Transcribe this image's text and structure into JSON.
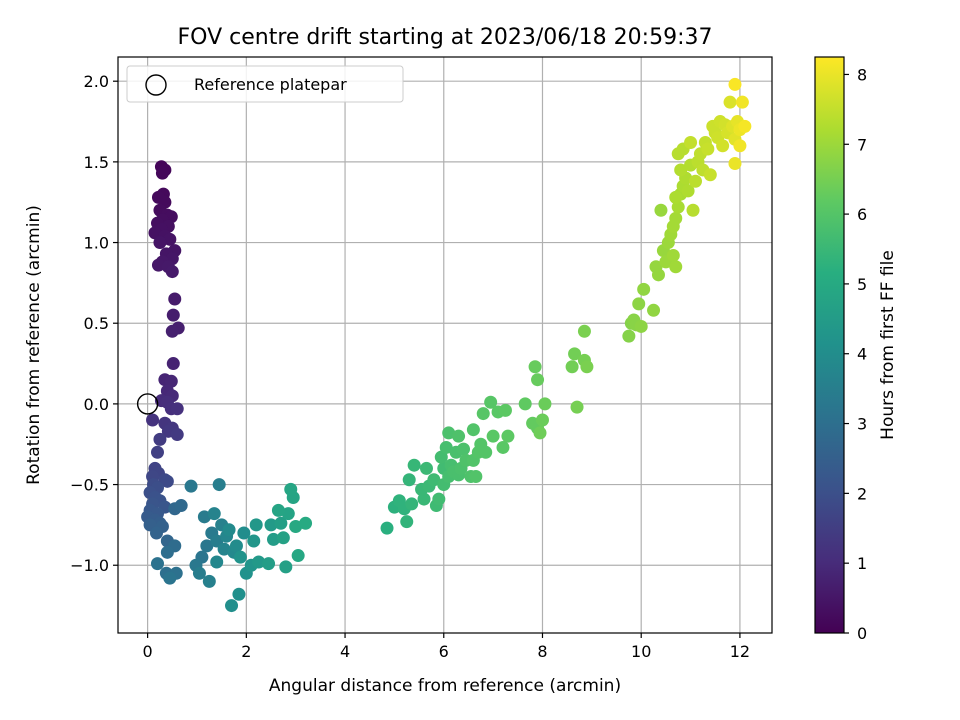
{
  "chart_data": {
    "type": "scatter",
    "title": "FOV centre drift starting at 2023/06/18 20:59:37",
    "xlabel": "Angular distance from reference (arcmin)",
    "ylabel": "Rotation from reference (arcmin)",
    "xlim": [
      -0.6,
      12.65
    ],
    "ylim": [
      -1.42,
      2.15
    ],
    "x_ticks": [
      0,
      2,
      4,
      6,
      8,
      10,
      12
    ],
    "y_ticks": [
      2.0,
      1.5,
      1.0,
      0.5,
      0.0,
      -0.5,
      -1.0
    ],
    "y_tick_labels": [
      "2.0",
      "1.5",
      "1.0",
      "0.5",
      "0.0",
      "−0.5",
      "−1.0"
    ],
    "grid": true,
    "legend": {
      "placement": "top-left",
      "label": "Reference platepar"
    },
    "reference_point": {
      "x": 0,
      "y": 0
    },
    "colorbar": {
      "label": "Hours from first FF file",
      "min": 0,
      "max": 8.25,
      "ticks": [
        0,
        1,
        2,
        3,
        4,
        5,
        6,
        7,
        8
      ],
      "colormap": "viridis",
      "colors": [
        "#440154",
        "#472d7b",
        "#3b528b",
        "#2c728e",
        "#21918c",
        "#28ae80",
        "#5ec962",
        "#addc30",
        "#fde725"
      ]
    },
    "points": [
      [
        0.28,
        1.47,
        0.1
      ],
      [
        0.35,
        1.45,
        0.12
      ],
      [
        0.3,
        1.43,
        0.15
      ],
      [
        0.32,
        1.3,
        0.18
      ],
      [
        0.22,
        1.28,
        0.2
      ],
      [
        0.35,
        1.25,
        0.22
      ],
      [
        0.25,
        1.2,
        0.25
      ],
      [
        0.4,
        1.17,
        0.27
      ],
      [
        0.48,
        1.16,
        0.28
      ],
      [
        0.3,
        1.14,
        0.3
      ],
      [
        0.2,
        1.12,
        0.32
      ],
      [
        0.42,
        1.1,
        0.34
      ],
      [
        0.28,
        1.08,
        0.36
      ],
      [
        0.15,
        1.06,
        0.38
      ],
      [
        0.35,
        1.04,
        0.4
      ],
      [
        0.45,
        1.02,
        0.42
      ],
      [
        0.25,
        1.0,
        0.44
      ],
      [
        0.55,
        0.95,
        0.46
      ],
      [
        0.38,
        0.93,
        0.48
      ],
      [
        0.5,
        0.9,
        0.5
      ],
      [
        0.3,
        0.88,
        0.52
      ],
      [
        0.22,
        0.86,
        0.54
      ],
      [
        0.42,
        0.85,
        0.56
      ],
      [
        0.5,
        0.82,
        0.58
      ],
      [
        0.55,
        0.65,
        0.62
      ],
      [
        0.52,
        0.55,
        0.66
      ],
      [
        0.62,
        0.47,
        0.7
      ],
      [
        0.5,
        0.45,
        0.72
      ],
      [
        0.52,
        0.25,
        0.8
      ],
      [
        0.35,
        0.15,
        0.85
      ],
      [
        0.48,
        0.14,
        0.88
      ],
      [
        0.4,
        0.08,
        0.92
      ],
      [
        0.5,
        0.05,
        0.95
      ],
      [
        0.28,
        0.02,
        1.0
      ],
      [
        0.4,
        0.01,
        1.05
      ],
      [
        0.48,
        -0.03,
        1.1
      ],
      [
        0.6,
        -0.03,
        1.15
      ],
      [
        0.1,
        -0.1,
        1.2
      ],
      [
        0.35,
        -0.12,
        1.25
      ],
      [
        0.5,
        -0.15,
        1.3
      ],
      [
        0.42,
        -0.17,
        1.35
      ],
      [
        0.6,
        -0.19,
        1.4
      ],
      [
        0.25,
        -0.22,
        1.45
      ],
      [
        0.2,
        -0.3,
        1.55
      ],
      [
        0.15,
        -0.4,
        1.65
      ],
      [
        0.22,
        -0.43,
        1.7
      ],
      [
        0.1,
        -0.45,
        1.75
      ],
      [
        0.35,
        -0.47,
        1.8
      ],
      [
        0.4,
        -0.48,
        1.85
      ],
      [
        0.12,
        -0.5,
        1.9
      ],
      [
        0.2,
        -0.52,
        1.95
      ],
      [
        0.05,
        -0.55,
        2.0
      ],
      [
        0.15,
        -0.58,
        2.05
      ],
      [
        0.25,
        -0.6,
        2.1
      ],
      [
        0.1,
        -0.62,
        2.15
      ],
      [
        0.35,
        -0.64,
        2.2
      ],
      [
        0.05,
        -0.66,
        2.25
      ],
      [
        0.2,
        -0.68,
        2.3
      ],
      [
        0.0,
        -0.7,
        2.35
      ],
      [
        0.15,
        -0.72,
        2.4
      ],
      [
        0.25,
        -0.74,
        2.45
      ],
      [
        0.05,
        -0.75,
        2.5
      ],
      [
        0.3,
        -0.76,
        2.55
      ],
      [
        0.18,
        -0.8,
        2.6
      ],
      [
        0.4,
        -0.85,
        2.7
      ],
      [
        0.55,
        -0.65,
        2.75
      ],
      [
        0.68,
        -0.63,
        2.8
      ],
      [
        0.55,
        -0.88,
        2.9
      ],
      [
        0.4,
        -0.92,
        2.95
      ],
      [
        0.38,
        -1.05,
        3.0
      ],
      [
        0.58,
        -1.05,
        3.05
      ],
      [
        0.2,
        -0.99,
        3.1
      ],
      [
        0.45,
        -1.08,
        3.15
      ],
      [
        0.88,
        -0.51,
        3.3
      ],
      [
        1.45,
        -0.5,
        3.5
      ],
      [
        1.1,
        -0.95,
        3.2
      ],
      [
        1.2,
        -0.88,
        3.25
      ],
      [
        0.98,
        -1.0,
        3.3
      ],
      [
        1.3,
        -0.8,
        3.35
      ],
      [
        1.15,
        -0.7,
        3.4
      ],
      [
        1.4,
        -0.85,
        3.45
      ],
      [
        1.05,
        -1.05,
        3.45
      ],
      [
        1.25,
        -1.1,
        3.55
      ],
      [
        1.5,
        -0.75,
        3.6
      ],
      [
        1.35,
        -0.68,
        3.65
      ],
      [
        1.55,
        -0.9,
        3.7
      ],
      [
        1.6,
        -0.82,
        3.75
      ],
      [
        1.4,
        -0.98,
        3.8
      ],
      [
        1.75,
        -0.92,
        3.85
      ],
      [
        1.65,
        -0.78,
        3.9
      ],
      [
        1.8,
        -0.88,
        3.95
      ],
      [
        1.95,
        -0.8,
        4.0
      ],
      [
        1.7,
        -1.25,
        4.05
      ],
      [
        1.85,
        -1.18,
        4.1
      ],
      [
        2.0,
        -1.05,
        4.15
      ],
      [
        1.88,
        -0.95,
        4.2
      ],
      [
        2.1,
        -1.0,
        4.25
      ],
      [
        2.15,
        -0.85,
        4.3
      ],
      [
        2.2,
        -0.75,
        4.35
      ],
      [
        2.25,
        -0.98,
        4.4
      ],
      [
        2.5,
        -0.75,
        4.45
      ],
      [
        2.55,
        -0.84,
        4.5
      ],
      [
        2.45,
        -0.99,
        4.55
      ],
      [
        2.7,
        -0.74,
        4.6
      ],
      [
        2.8,
        -1.01,
        4.65
      ],
      [
        2.75,
        -0.83,
        4.7
      ],
      [
        2.85,
        -0.68,
        4.75
      ],
      [
        2.95,
        -0.58,
        4.8
      ],
      [
        2.9,
        -0.53,
        4.85
      ],
      [
        3.05,
        -0.94,
        4.9
      ],
      [
        3.0,
        -0.76,
        4.95
      ],
      [
        3.2,
        -0.74,
        5.0
      ],
      [
        2.65,
        -0.66,
        4.8
      ],
      [
        4.85,
        -0.77,
        5.2
      ],
      [
        5.0,
        -0.64,
        5.25
      ],
      [
        5.1,
        -0.6,
        5.3
      ],
      [
        5.25,
        -0.73,
        5.35
      ],
      [
        5.2,
        -0.65,
        5.3
      ],
      [
        5.3,
        -0.47,
        5.4
      ],
      [
        5.35,
        -0.62,
        5.4
      ],
      [
        5.4,
        -0.38,
        5.45
      ],
      [
        5.6,
        -0.59,
        5.5
      ],
      [
        5.55,
        -0.53,
        5.5
      ],
      [
        5.7,
        -0.51,
        5.55
      ],
      [
        5.65,
        -0.4,
        5.55
      ],
      [
        5.8,
        -0.47,
        5.6
      ],
      [
        5.85,
        -0.63,
        5.6
      ],
      [
        5.9,
        -0.59,
        5.65
      ],
      [
        6.0,
        -0.4,
        5.65
      ],
      [
        6.0,
        -0.5,
        5.7
      ],
      [
        5.95,
        -0.33,
        5.7
      ],
      [
        6.1,
        -0.45,
        5.75
      ],
      [
        6.15,
        -0.38,
        5.75
      ],
      [
        6.05,
        -0.27,
        5.75
      ],
      [
        6.2,
        -0.42,
        5.8
      ],
      [
        6.25,
        -0.3,
        5.8
      ],
      [
        6.3,
        -0.44,
        5.8
      ],
      [
        6.1,
        -0.18,
        5.85
      ],
      [
        6.35,
        -0.4,
        5.85
      ],
      [
        6.4,
        -0.28,
        5.85
      ],
      [
        6.3,
        -0.2,
        5.9
      ],
      [
        6.45,
        -0.35,
        5.9
      ],
      [
        6.55,
        -0.45,
        5.9
      ],
      [
        6.6,
        -0.35,
        5.95
      ],
      [
        6.65,
        -0.45,
        5.95
      ],
      [
        6.6,
        -0.16,
        5.95
      ],
      [
        6.7,
        -0.3,
        6.0
      ],
      [
        6.75,
        -0.25,
        6.0
      ],
      [
        6.85,
        -0.3,
        6.0
      ],
      [
        6.8,
        -0.06,
        6.05
      ],
      [
        6.95,
        0.01,
        6.05
      ],
      [
        7.0,
        -0.2,
        6.1
      ],
      [
        7.1,
        -0.05,
        6.1
      ],
      [
        7.2,
        -0.27,
        6.1
      ],
      [
        7.25,
        -0.04,
        6.15
      ],
      [
        7.3,
        -0.2,
        6.15
      ],
      [
        7.65,
        0.0,
        6.2
      ],
      [
        7.9,
        -0.15,
        6.25
      ],
      [
        7.8,
        -0.12,
        6.25
      ],
      [
        7.85,
        0.23,
        6.3
      ],
      [
        7.9,
        0.15,
        6.3
      ],
      [
        8.05,
        0.0,
        6.35
      ],
      [
        8.0,
        -0.1,
        6.35
      ],
      [
        7.95,
        -0.18,
        6.4
      ],
      [
        8.6,
        0.23,
        6.45
      ],
      [
        8.65,
        0.31,
        6.45
      ],
      [
        8.7,
        -0.02,
        6.5
      ],
      [
        8.85,
        0.27,
        6.5
      ],
      [
        8.9,
        0.23,
        6.55
      ],
      [
        8.85,
        0.45,
        6.55
      ],
      [
        9.75,
        0.42,
        6.7
      ],
      [
        9.8,
        0.5,
        6.7
      ],
      [
        9.85,
        0.52,
        6.75
      ],
      [
        9.9,
        0.49,
        6.75
      ],
      [
        9.95,
        0.62,
        6.8
      ],
      [
        10.0,
        0.48,
        6.8
      ],
      [
        10.05,
        0.71,
        6.85
      ],
      [
        10.25,
        0.58,
        6.85
      ],
      [
        10.3,
        0.85,
        6.9
      ],
      [
        10.35,
        0.8,
        6.9
      ],
      [
        10.45,
        0.95,
        6.95
      ],
      [
        10.4,
        1.2,
        6.95
      ],
      [
        10.5,
        0.88,
        7.0
      ],
      [
        10.55,
        1.0,
        7.0
      ],
      [
        10.6,
        1.05,
        7.05
      ],
      [
        10.65,
        0.92,
        7.05
      ],
      [
        10.7,
        0.85,
        7.05
      ],
      [
        10.65,
        1.1,
        7.1
      ],
      [
        10.7,
        1.15,
        7.1
      ],
      [
        10.75,
        1.22,
        7.15
      ],
      [
        10.8,
        1.3,
        7.15
      ],
      [
        10.85,
        1.35,
        7.2
      ],
      [
        10.7,
        1.28,
        7.2
      ],
      [
        10.9,
        1.4,
        7.25
      ],
      [
        10.95,
        1.32,
        7.25
      ],
      [
        10.8,
        1.45,
        7.3
      ],
      [
        11.0,
        1.48,
        7.3
      ],
      [
        10.75,
        1.55,
        7.35
      ],
      [
        10.85,
        1.58,
        7.35
      ],
      [
        11.05,
        1.2,
        7.35
      ],
      [
        11.1,
        1.38,
        7.4
      ],
      [
        11.15,
        1.5,
        7.4
      ],
      [
        11.2,
        1.55,
        7.45
      ],
      [
        11.25,
        1.45,
        7.45
      ],
      [
        11.0,
        1.62,
        7.5
      ],
      [
        11.3,
        1.62,
        7.5
      ],
      [
        11.4,
        1.42,
        7.55
      ],
      [
        11.35,
        1.58,
        7.55
      ],
      [
        11.45,
        1.72,
        7.6
      ],
      [
        11.5,
        1.68,
        7.6
      ],
      [
        11.55,
        1.65,
        7.65
      ],
      [
        11.6,
        1.75,
        7.65
      ],
      [
        11.65,
        1.6,
        7.7
      ],
      [
        11.7,
        1.73,
        7.7
      ],
      [
        11.75,
        1.68,
        7.75
      ],
      [
        11.8,
        1.87,
        7.8
      ],
      [
        11.85,
        1.72,
        7.85
      ],
      [
        11.9,
        1.64,
        7.9
      ],
      [
        11.95,
        1.75,
        7.95
      ],
      [
        11.9,
        1.49,
        8.0
      ],
      [
        12.0,
        1.7,
        8.05
      ],
      [
        12.05,
        1.87,
        8.1
      ],
      [
        12.0,
        1.6,
        8.1
      ],
      [
        12.1,
        1.72,
        8.15
      ],
      [
        11.9,
        1.98,
        8.2
      ]
    ]
  }
}
